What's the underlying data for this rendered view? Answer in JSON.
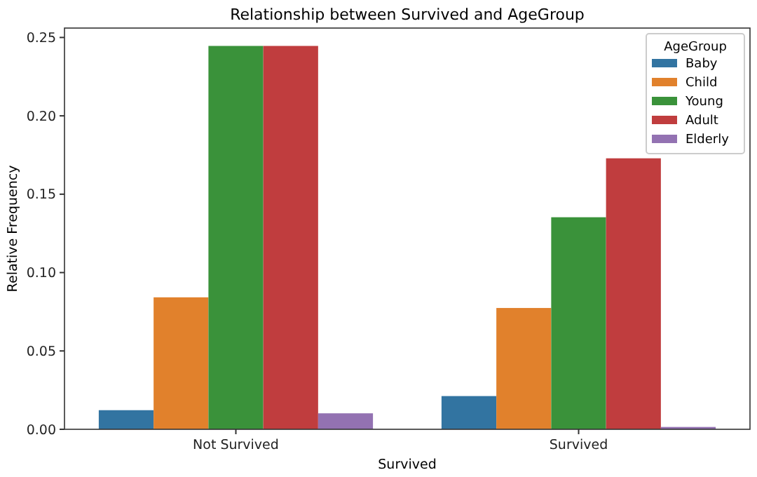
{
  "chart_data": {
    "type": "bar",
    "title": "Relationship between Survived and AgeGroup",
    "xlabel": "Survived",
    "ylabel": "Relative Frequency",
    "legend_title": "AgeGroup",
    "legend": "top right",
    "categories": [
      "Not Survived",
      "Survived"
    ],
    "series": [
      {
        "name": "Baby",
        "color": "#3274a1",
        "values": [
          0.0122,
          0.0212
        ]
      },
      {
        "name": "Child",
        "color": "#e1812c",
        "values": [
          0.0842,
          0.0774
        ]
      },
      {
        "name": "Young",
        "color": "#3a923a",
        "values": [
          0.2446,
          0.1353
        ]
      },
      {
        "name": "Adult",
        "color": "#c03d3e",
        "values": [
          0.2446,
          0.1729
        ]
      },
      {
        "name": "Elderly",
        "color": "#9372b2",
        "values": [
          0.0102,
          0.0015
        ]
      }
    ],
    "ylim": [
      0,
      0.256
    ],
    "yticks": [
      {
        "value": 0,
        "label": "0.00"
      },
      {
        "value": 0.05,
        "label": "0.05"
      },
      {
        "value": 0.1,
        "label": "0.10"
      },
      {
        "value": 0.15,
        "label": "0.15"
      },
      {
        "value": 0.2,
        "label": "0.20"
      },
      {
        "value": 0.25,
        "label": "0.25"
      }
    ]
  }
}
